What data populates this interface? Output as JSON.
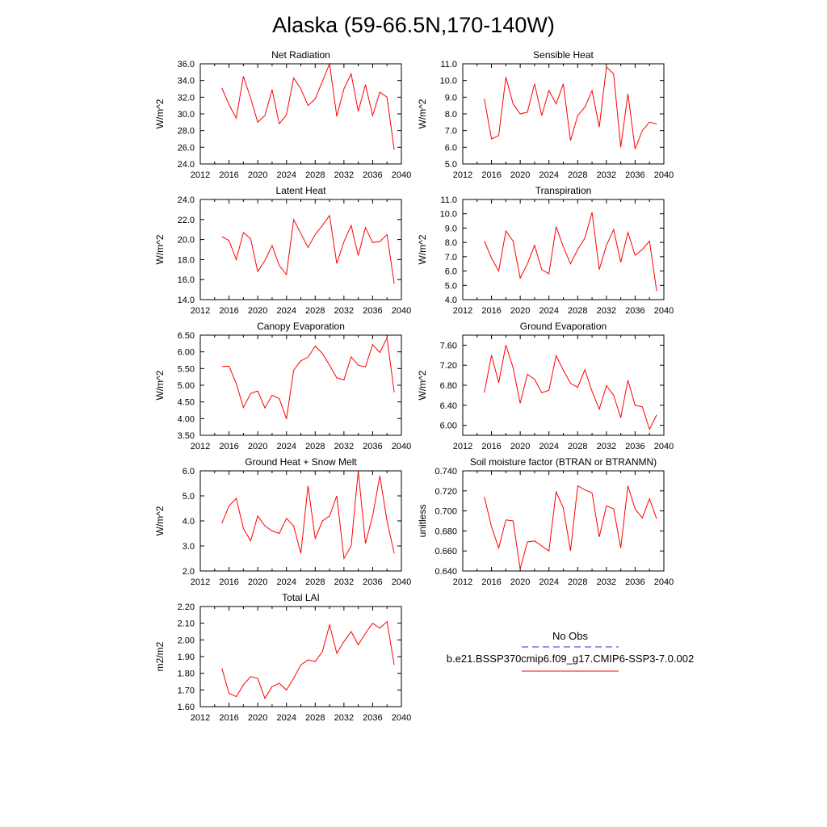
{
  "figure": {
    "title": "Alaska (59-66.5N,170-140W)"
  },
  "legend": {
    "obs_label": "No Obs",
    "obs_color": "#2b2bd6",
    "model_label": "b.e21.BSSP370cmip6.f09_g17.CMIP6-SSP3-7.0.002",
    "model_color": "#ff0000"
  },
  "chart_data": [
    {
      "type": "line",
      "title": "Net Radiation",
      "xlabel": "",
      "ylabel": "W/m^2",
      "xlim": [
        2012,
        2040
      ],
      "ylim": [
        24.0,
        36.0
      ],
      "xticks": [
        2012,
        2016,
        2020,
        2024,
        2028,
        2032,
        2036,
        2040
      ],
      "yticks": [
        24.0,
        26.0,
        28.0,
        30.0,
        32.0,
        34.0,
        36.0
      ],
      "ytick_decimals": 1,
      "grid": false,
      "series": [
        {
          "color": "#ff0000",
          "x": [
            2015,
            2016,
            2017,
            2018,
            2019,
            2020,
            2021,
            2022,
            2023,
            2024,
            2025,
            2026,
            2027,
            2028,
            2029,
            2030,
            2031,
            2032,
            2033,
            2034,
            2035,
            2036,
            2037,
            2038,
            2039
          ],
          "y": [
            33.1,
            31.1,
            29.5,
            34.5,
            31.9,
            29.0,
            29.8,
            32.9,
            28.8,
            29.9,
            34.3,
            33.0,
            31.0,
            31.8,
            33.9,
            36.0,
            29.7,
            33.0,
            34.8,
            30.3,
            33.5,
            29.8,
            32.6,
            32.0,
            25.7
          ]
        }
      ]
    },
    {
      "type": "line",
      "title": "Sensible Heat",
      "xlabel": "",
      "ylabel": "W/m^2",
      "xlim": [
        2012,
        2040
      ],
      "ylim": [
        5.0,
        11.0
      ],
      "xticks": [
        2012,
        2016,
        2020,
        2024,
        2028,
        2032,
        2036,
        2040
      ],
      "yticks": [
        5.0,
        6.0,
        7.0,
        8.0,
        9.0,
        10.0,
        11.0
      ],
      "ytick_decimals": 1,
      "grid": false,
      "series": [
        {
          "color": "#ff0000",
          "x": [
            2015,
            2016,
            2017,
            2018,
            2019,
            2020,
            2021,
            2022,
            2023,
            2024,
            2025,
            2026,
            2027,
            2028,
            2029,
            2030,
            2031,
            2032,
            2033,
            2034,
            2035,
            2036,
            2037,
            2038,
            2039
          ],
          "y": [
            8.9,
            6.5,
            6.7,
            10.2,
            8.6,
            8.0,
            8.1,
            9.8,
            7.9,
            9.4,
            8.6,
            9.8,
            6.4,
            7.9,
            8.4,
            9.4,
            7.2,
            10.8,
            10.4,
            6.0,
            9.2,
            5.9,
            7.0,
            7.5,
            7.4
          ]
        }
      ]
    },
    {
      "type": "line",
      "title": "Latent Heat",
      "xlabel": "",
      "ylabel": "W/m^2",
      "xlim": [
        2012,
        2040
      ],
      "ylim": [
        14.0,
        24.0
      ],
      "xticks": [
        2012,
        2016,
        2020,
        2024,
        2028,
        2032,
        2036,
        2040
      ],
      "yticks": [
        14.0,
        16.0,
        18.0,
        20.0,
        22.0,
        24.0
      ],
      "ytick_decimals": 1,
      "grid": false,
      "series": [
        {
          "color": "#ff0000",
          "x": [
            2015,
            2016,
            2017,
            2018,
            2019,
            2020,
            2021,
            2022,
            2023,
            2024,
            2025,
            2026,
            2027,
            2028,
            2029,
            2030,
            2031,
            2032,
            2033,
            2034,
            2035,
            2036,
            2037,
            2038,
            2039
          ],
          "y": [
            20.3,
            19.9,
            18.0,
            20.7,
            20.1,
            16.8,
            17.9,
            19.4,
            17.4,
            16.5,
            22.0,
            20.6,
            19.2,
            20.5,
            21.4,
            22.4,
            17.6,
            19.8,
            21.4,
            18.4,
            21.2,
            19.7,
            19.8,
            20.5,
            15.6
          ]
        }
      ]
    },
    {
      "type": "line",
      "title": "Transpiration",
      "xlabel": "",
      "ylabel": "W/m^2",
      "xlim": [
        2012,
        2040
      ],
      "ylim": [
        4.0,
        11.0
      ],
      "xticks": [
        2012,
        2016,
        2020,
        2024,
        2028,
        2032,
        2036,
        2040
      ],
      "yticks": [
        4.0,
        5.0,
        6.0,
        7.0,
        8.0,
        9.0,
        10.0,
        11.0
      ],
      "ytick_decimals": 1,
      "grid": false,
      "series": [
        {
          "color": "#ff0000",
          "x": [
            2015,
            2016,
            2017,
            2018,
            2019,
            2020,
            2021,
            2022,
            2023,
            2024,
            2025,
            2026,
            2027,
            2028,
            2029,
            2030,
            2031,
            2032,
            2033,
            2034,
            2035,
            2036,
            2037,
            2038,
            2039
          ],
          "y": [
            8.1,
            6.9,
            6.0,
            8.8,
            8.1,
            5.5,
            6.5,
            7.8,
            6.1,
            5.8,
            9.1,
            7.7,
            6.5,
            7.5,
            8.3,
            10.1,
            6.1,
            7.8,
            8.9,
            6.6,
            8.7,
            7.1,
            7.5,
            8.1,
            4.6
          ]
        }
      ]
    },
    {
      "type": "line",
      "title": "Canopy Evaporation",
      "xlabel": "",
      "ylabel": "W/m^2",
      "xlim": [
        2012,
        2040
      ],
      "ylim": [
        3.5,
        6.5
      ],
      "xticks": [
        2012,
        2016,
        2020,
        2024,
        2028,
        2032,
        2036,
        2040
      ],
      "yticks": [
        3.5,
        4.0,
        4.5,
        5.0,
        5.5,
        6.0,
        6.5
      ],
      "ytick_decimals": 2,
      "grid": false,
      "series": [
        {
          "color": "#ff0000",
          "x": [
            2015,
            2016,
            2017,
            2018,
            2019,
            2020,
            2021,
            2022,
            2023,
            2024,
            2025,
            2026,
            2027,
            2028,
            2029,
            2030,
            2031,
            2032,
            2033,
            2034,
            2035,
            2036,
            2037,
            2038,
            2039
          ],
          "y": [
            5.56,
            5.57,
            5.05,
            4.33,
            4.75,
            4.83,
            4.32,
            4.7,
            4.6,
            3.99,
            5.45,
            5.73,
            5.84,
            6.17,
            5.95,
            5.6,
            5.22,
            5.16,
            5.85,
            5.6,
            5.55,
            6.22,
            5.98,
            6.42,
            4.79
          ]
        }
      ]
    },
    {
      "type": "line",
      "title": "Ground Evaporation",
      "xlabel": "",
      "ylabel": "W/m^2",
      "xlim": [
        2012,
        2040
      ],
      "ylim": [
        5.8,
        7.8
      ],
      "xticks": [
        2012,
        2016,
        2020,
        2024,
        2028,
        2032,
        2036,
        2040
      ],
      "yticks": [
        6.0,
        6.4,
        6.8,
        7.2,
        7.6
      ],
      "ytick_decimals": 2,
      "grid": false,
      "series": [
        {
          "color": "#ff0000",
          "x": [
            2015,
            2016,
            2017,
            2018,
            2019,
            2020,
            2021,
            2022,
            2023,
            2024,
            2025,
            2026,
            2027,
            2028,
            2029,
            2030,
            2031,
            2032,
            2033,
            2034,
            2035,
            2036,
            2037,
            2038,
            2039
          ],
          "y": [
            6.65,
            7.4,
            6.85,
            7.6,
            7.15,
            6.44,
            7.02,
            6.92,
            6.65,
            6.7,
            7.39,
            7.1,
            6.84,
            6.76,
            7.11,
            6.68,
            6.32,
            6.79,
            6.6,
            6.15,
            6.9,
            6.4,
            6.37,
            5.92,
            6.21
          ]
        }
      ]
    },
    {
      "type": "line",
      "title": "Ground Heat + Snow Melt",
      "xlabel": "",
      "ylabel": "W/m^2",
      "xlim": [
        2012,
        2040
      ],
      "ylim": [
        2.0,
        6.0
      ],
      "xticks": [
        2012,
        2016,
        2020,
        2024,
        2028,
        2032,
        2036,
        2040
      ],
      "yticks": [
        2.0,
        3.0,
        4.0,
        5.0,
        6.0
      ],
      "ytick_decimals": 1,
      "grid": false,
      "series": [
        {
          "color": "#ff0000",
          "x": [
            2015,
            2016,
            2017,
            2018,
            2019,
            2020,
            2021,
            2022,
            2023,
            2024,
            2025,
            2026,
            2027,
            2028,
            2029,
            2030,
            2031,
            2032,
            2033,
            2034,
            2035,
            2036,
            2037,
            2038,
            2039
          ],
          "y": [
            3.9,
            4.6,
            4.9,
            3.7,
            3.2,
            4.2,
            3.8,
            3.6,
            3.5,
            4.1,
            3.8,
            2.7,
            5.4,
            3.3,
            4.0,
            4.2,
            5.0,
            2.5,
            3.0,
            6.0,
            3.1,
            4.2,
            5.8,
            4.0,
            2.7
          ]
        }
      ]
    },
    {
      "type": "line",
      "title": "Soil moisture factor (BTRAN or BTRANMN)",
      "xlabel": "",
      "ylabel": "unitless",
      "xlim": [
        2012,
        2040
      ],
      "ylim": [
        0.64,
        0.74
      ],
      "xticks": [
        2012,
        2016,
        2020,
        2024,
        2028,
        2032,
        2036,
        2040
      ],
      "yticks": [
        0.64,
        0.66,
        0.68,
        0.7,
        0.72,
        0.74
      ],
      "ytick_decimals": 3,
      "grid": false,
      "series": [
        {
          "color": "#ff0000",
          "x": [
            2015,
            2016,
            2017,
            2018,
            2019,
            2020,
            2021,
            2022,
            2023,
            2024,
            2025,
            2026,
            2027,
            2028,
            2029,
            2030,
            2031,
            2032,
            2033,
            2034,
            2035,
            2036,
            2037,
            2038,
            2039
          ],
          "y": [
            0.714,
            0.684,
            0.663,
            0.691,
            0.69,
            0.642,
            0.669,
            0.67,
            0.665,
            0.66,
            0.719,
            0.703,
            0.66,
            0.725,
            0.721,
            0.718,
            0.674,
            0.705,
            0.702,
            0.663,
            0.725,
            0.702,
            0.693,
            0.712,
            0.692
          ]
        }
      ]
    },
    {
      "type": "line",
      "title": "Total LAI",
      "xlabel": "",
      "ylabel": "m2/m2",
      "xlim": [
        2012,
        2040
      ],
      "ylim": [
        1.6,
        2.2
      ],
      "xticks": [
        2012,
        2016,
        2020,
        2024,
        2028,
        2032,
        2036,
        2040
      ],
      "yticks": [
        1.6,
        1.7,
        1.8,
        1.9,
        2.0,
        2.1,
        2.2
      ],
      "ytick_decimals": 2,
      "grid": false,
      "series": [
        {
          "color": "#ff0000",
          "x": [
            2015,
            2016,
            2017,
            2018,
            2019,
            2020,
            2021,
            2022,
            2023,
            2024,
            2025,
            2026,
            2027,
            2028,
            2029,
            2030,
            2031,
            2032,
            2033,
            2034,
            2035,
            2036,
            2037,
            2038,
            2039
          ],
          "y": [
            1.83,
            1.68,
            1.66,
            1.73,
            1.78,
            1.77,
            1.65,
            1.72,
            1.74,
            1.7,
            1.77,
            1.85,
            1.88,
            1.87,
            1.93,
            2.09,
            1.92,
            1.99,
            2.05,
            1.97,
            2.04,
            2.1,
            2.07,
            2.11,
            1.85
          ]
        }
      ]
    }
  ]
}
